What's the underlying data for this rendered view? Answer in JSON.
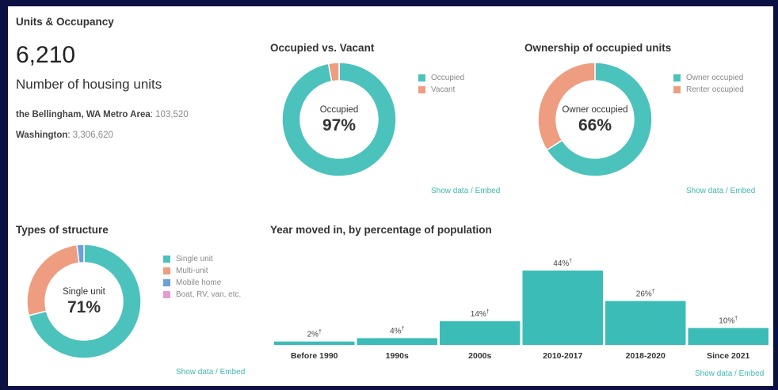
{
  "header": {
    "title": "Units & Occupancy"
  },
  "summary": {
    "value": "6,210",
    "caption": "Number of housing units",
    "comparisons": [
      {
        "label": "the Bellingham, WA Metro Area",
        "value": "103,520"
      },
      {
        "label": "Washington",
        "value": "3,306,620"
      }
    ]
  },
  "links": {
    "show_data": "Show data",
    "separator": " / ",
    "embed": "Embed"
  },
  "colors": {
    "teal": "#4cc2bd",
    "salmon": "#ee9d80",
    "blue": "#6d9fd9",
    "pink": "#e79ad0"
  },
  "chart_data": [
    {
      "type": "pie",
      "title": "Occupied vs. Vacant",
      "center_label": "Occupied",
      "center_value": "97%",
      "slices": [
        {
          "name": "Occupied",
          "value": 97,
          "color": "#4cc2bd"
        },
        {
          "name": "Vacant",
          "value": 3,
          "color": "#ee9d80"
        }
      ]
    },
    {
      "type": "pie",
      "title": "Ownership of occupied units",
      "center_label": "Owner occupied",
      "center_value": "66%",
      "slices": [
        {
          "name": "Owner occupied",
          "value": 66,
          "color": "#4cc2bd"
        },
        {
          "name": "Renter occupied",
          "value": 34,
          "color": "#ee9d80"
        }
      ]
    },
    {
      "type": "pie",
      "title": "Types of structure",
      "center_label": "Single unit",
      "center_value": "71%",
      "slices": [
        {
          "name": "Single unit",
          "value": 71,
          "color": "#4cc2bd"
        },
        {
          "name": "Multi-unit",
          "value": 27,
          "color": "#ee9d80"
        },
        {
          "name": "Mobile home",
          "value": 2,
          "color": "#6d9fd9"
        },
        {
          "name": "Boat, RV, van, etc.",
          "value": 0,
          "color": "#e79ad0"
        }
      ]
    },
    {
      "type": "bar",
      "title": "Year moved in, by percentage of population",
      "categories": [
        "Before 1990",
        "1990s",
        "2000s",
        "2010-2017",
        "2018-2020",
        "Since 2021"
      ],
      "values": [
        2,
        4,
        14,
        44,
        26,
        10
      ],
      "labels": [
        "2%",
        "4%",
        "14%",
        "44%",
        "26%",
        "10%"
      ],
      "label_marker": "†",
      "color": "#3cbcb6"
    }
  ]
}
